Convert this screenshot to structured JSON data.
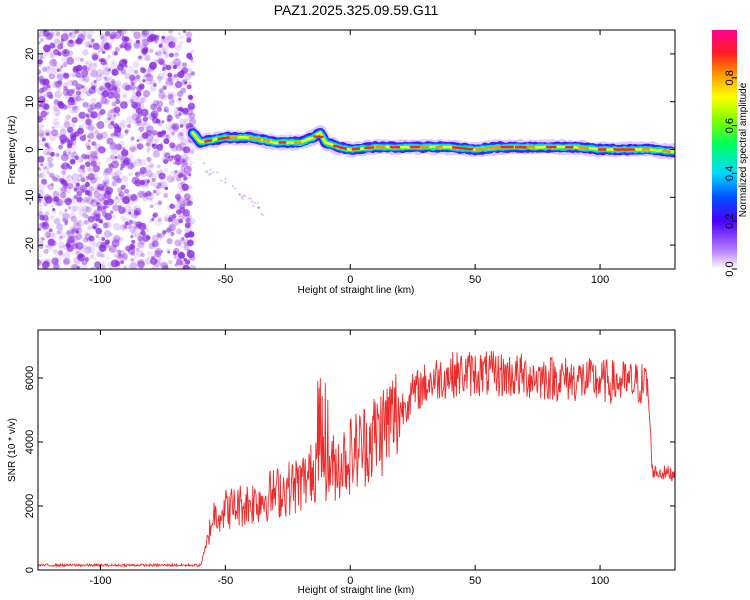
{
  "title": "PAZ1.2025.325.09.59.G11",
  "colors": {
    "snr_line": "#ee2b2b",
    "noise_dots": "#8a2be2",
    "axis": "#000000"
  },
  "chart_data": [
    {
      "type": "heatmap",
      "name": "spectrogram",
      "xlabel": "Height of straight line (km)",
      "ylabel": "Frequency (Hz)",
      "xlim": [
        -125,
        130
      ],
      "ylim": [
        -25,
        25
      ],
      "xticks": [
        -100,
        -50,
        0,
        50,
        100
      ],
      "yticks": [
        -20,
        -10,
        0,
        10,
        20
      ],
      "colorbar": {
        "label": "Normalized spectral amplitude",
        "range": [
          0,
          1
        ],
        "ticks": [
          0.0,
          0.2,
          0.4,
          0.6,
          0.8
        ],
        "colormap": "rainbow (white → violet → blue → cyan → green → yellow → orange → red → magenta)"
      },
      "noise_region_x": [
        -125,
        -63
      ],
      "ridge": {
        "x": [
          -63,
          -60,
          -55,
          -50,
          -45,
          -40,
          -35,
          -30,
          -25,
          -20,
          -15,
          -12,
          -10,
          -5,
          0,
          10,
          20,
          30,
          40,
          50,
          60,
          70,
          80,
          90,
          100,
          110,
          120,
          130
        ],
        "frequency": [
          3.5,
          1.5,
          2,
          2.5,
          2.5,
          2.5,
          2,
          1.5,
          1.5,
          1.5,
          2.5,
          3.5,
          1.5,
          0.5,
          0,
          0.5,
          0.5,
          0.5,
          0.5,
          0,
          0.5,
          0.5,
          0.5,
          0.5,
          0,
          0,
          0,
          -0.5
        ]
      }
    },
    {
      "type": "line",
      "name": "snr",
      "xlabel": "Height of straight line (km)",
      "ylabel": "SNR (10 * v/v)",
      "xlim": [
        -125,
        130
      ],
      "ylim": [
        0,
        7500
      ],
      "xticks": [
        -100,
        -50,
        0,
        50,
        100
      ],
      "yticks": [
        0,
        2000,
        4000,
        6000
      ],
      "envelope": {
        "x": [
          -125,
          -60,
          -58,
          -55,
          -50,
          -45,
          -40,
          -30,
          -20,
          -15,
          -12,
          -10,
          -5,
          0,
          5,
          10,
          15,
          20,
          25,
          30,
          35,
          40,
          50,
          60,
          70,
          80,
          90,
          100,
          110,
          119,
          121,
          123,
          130
        ],
        "y": [
          150,
          150,
          600,
          1700,
          1900,
          2000,
          2100,
          2400,
          2700,
          3000,
          3800,
          3000,
          3300,
          3600,
          3900,
          4200,
          4600,
          5000,
          5500,
          5800,
          6000,
          6100,
          6150,
          6100,
          6050,
          6000,
          5950,
          5900,
          5850,
          5800,
          3100,
          3050,
          3000
        ]
      }
    }
  ]
}
